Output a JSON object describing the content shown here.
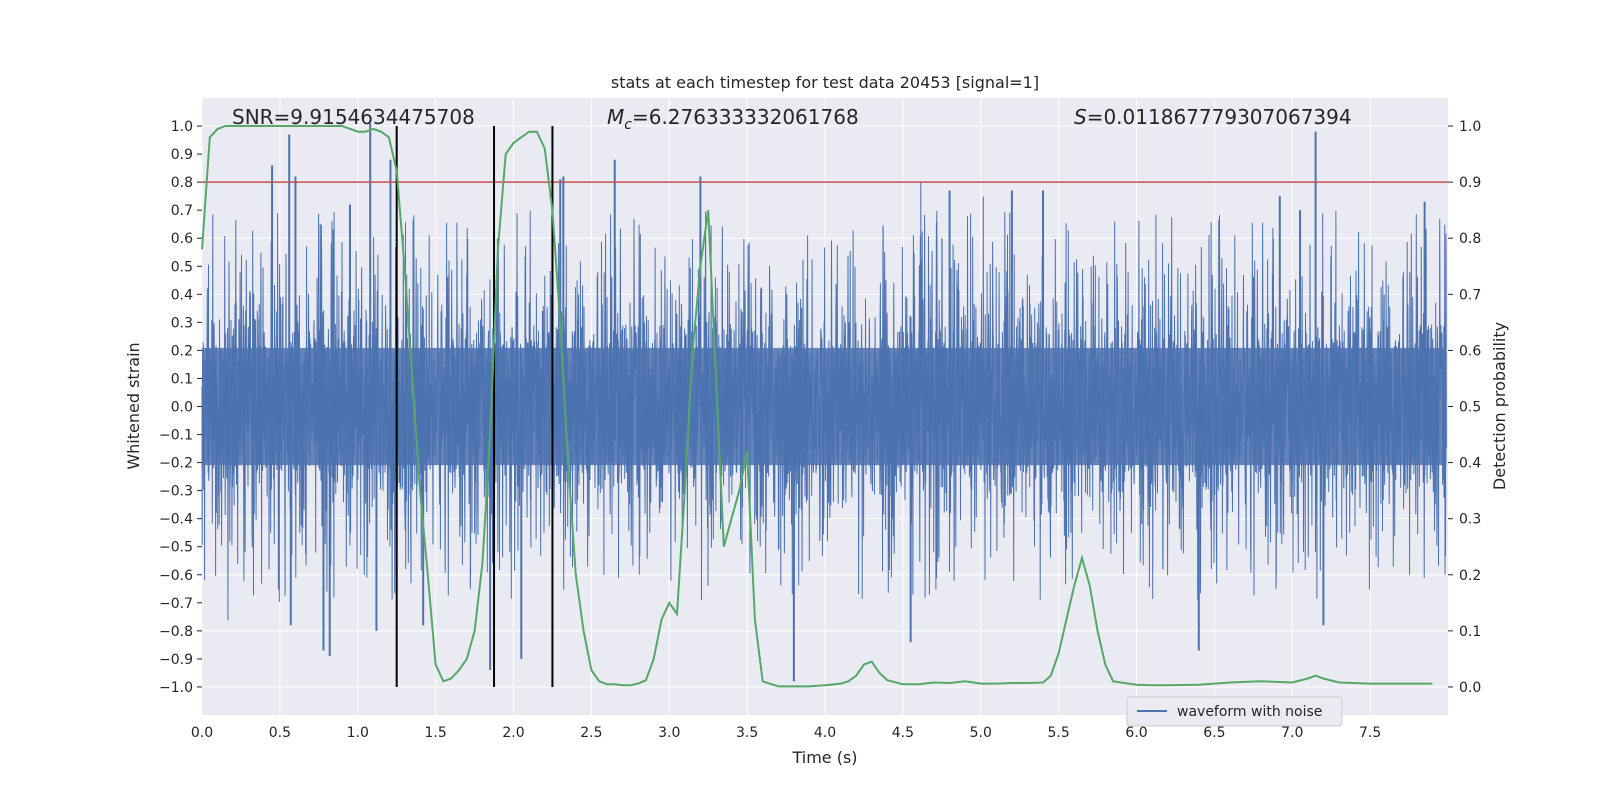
{
  "chart_data": {
    "type": "line",
    "title": "stats at each timestep for test data 20453 [signal=1]",
    "xlabel": "Time (s)",
    "ylabel_left": "Whitened strain",
    "ylabel_right": "Detection probability",
    "xlim": [
      0.0,
      8.0
    ],
    "ylim_left": [
      -1.1,
      1.1
    ],
    "ylim_right": [
      -0.05,
      1.05
    ],
    "x_ticks": [
      0.0,
      0.5,
      1.0,
      1.5,
      2.0,
      2.5,
      3.0,
      3.5,
      4.0,
      4.5,
      5.0,
      5.5,
      6.0,
      6.5,
      7.0,
      7.5
    ],
    "x_tick_labels": [
      "0.0",
      "0.5",
      "1.0",
      "1.5",
      "2.0",
      "2.5",
      "3.0",
      "3.5",
      "4.0",
      "4.5",
      "5.0",
      "5.5",
      "6.0",
      "6.5",
      "7.0",
      "7.5"
    ],
    "y_left_ticks": [
      1.0,
      0.9,
      0.8,
      0.7,
      0.6,
      0.5,
      0.4,
      0.3,
      0.2,
      0.1,
      0.0,
      -0.1,
      -0.2,
      -0.3,
      -0.4,
      -0.5,
      -0.6,
      -0.7,
      -0.8,
      -0.9,
      -1.0
    ],
    "y_left_tick_labels": [
      "1.0",
      "0.9",
      "0.8",
      "0.7",
      "0.6",
      "0.5",
      "0.4",
      "0.3",
      "0.2",
      "0.1",
      "0.0",
      "−0.1",
      "−0.2",
      "−0.3",
      "−0.4",
      "−0.5",
      "−0.6",
      "−0.7",
      "−0.8",
      "−0.9",
      "−1.0"
    ],
    "y_right_ticks": [
      1.0,
      0.9,
      0.8,
      0.7,
      0.6,
      0.5,
      0.4,
      0.3,
      0.2,
      0.1,
      0.0
    ],
    "y_right_tick_labels": [
      "1.0",
      "0.9",
      "0.8",
      "0.7",
      "0.6",
      "0.5",
      "0.4",
      "0.3",
      "0.2",
      "0.1",
      "0.0"
    ],
    "grid": true,
    "annotations": {
      "snr": "SNR=9.9154634475708",
      "mc_symbol": "M",
      "mc_subscript": "c",
      "mc_value": "=6.276333332061768",
      "s_symbol": "S",
      "s_value": "=0.011867779307067394"
    },
    "waveform": {
      "name": "waveform with noise",
      "color": "#4c72b0",
      "duration_s": 8.0,
      "sample_rate_hz": 2048,
      "core_amplitude": 0.38,
      "note": "dense noisy whitened strain trace; spikes listed below",
      "spikes": [
        {
          "t": 0.45,
          "v": 0.86
        },
        {
          "t": 0.56,
          "v": 0.97
        },
        {
          "t": 0.57,
          "v": -0.78
        },
        {
          "t": 0.6,
          "v": 0.82
        },
        {
          "t": 0.78,
          "v": -0.87
        },
        {
          "t": 0.82,
          "v": -0.89
        },
        {
          "t": 0.95,
          "v": 0.72
        },
        {
          "t": 1.08,
          "v": 1.01
        },
        {
          "t": 1.12,
          "v": -0.8
        },
        {
          "t": 1.21,
          "v": 0.88
        },
        {
          "t": 1.42,
          "v": -0.78
        },
        {
          "t": 1.85,
          "v": -0.94
        },
        {
          "t": 1.9,
          "v": 0.6
        },
        {
          "t": 2.05,
          "v": -0.9
        },
        {
          "t": 2.3,
          "v": 0.81
        },
        {
          "t": 2.32,
          "v": 0.82
        },
        {
          "t": 2.65,
          "v": 0.88
        },
        {
          "t": 3.2,
          "v": 0.82
        },
        {
          "t": 3.8,
          "v": -0.98
        },
        {
          "t": 4.55,
          "v": -0.84
        },
        {
          "t": 4.8,
          "v": 0.77
        },
        {
          "t": 5.2,
          "v": 0.77
        },
        {
          "t": 5.4,
          "v": 0.77
        },
        {
          "t": 6.4,
          "v": -0.87
        },
        {
          "t": 6.92,
          "v": 0.75
        },
        {
          "t": 7.05,
          "v": 0.7
        },
        {
          "t": 7.15,
          "v": 0.98
        },
        {
          "t": 7.2,
          "v": -0.78
        },
        {
          "t": 7.85,
          "v": 0.73
        }
      ]
    },
    "probability": {
      "color": "#55a868",
      "axis": "right",
      "t": [
        0.0,
        0.05,
        0.1,
        0.15,
        0.2,
        0.3,
        0.4,
        0.5,
        0.6,
        0.7,
        0.8,
        0.9,
        1.0,
        1.05,
        1.1,
        1.15,
        1.2,
        1.25,
        1.3,
        1.35,
        1.4,
        1.45,
        1.5,
        1.55,
        1.6,
        1.65,
        1.7,
        1.75,
        1.8,
        1.85,
        1.9,
        1.95,
        2.0,
        2.05,
        2.1,
        2.15,
        2.2,
        2.25,
        2.3,
        2.35,
        2.4,
        2.45,
        2.5,
        2.55,
        2.6,
        2.65,
        2.7,
        2.75,
        2.8,
        2.85,
        2.9,
        2.95,
        3.0,
        3.05,
        3.1,
        3.15,
        3.2,
        3.25,
        3.3,
        3.35,
        3.4,
        3.45,
        3.5,
        3.55,
        3.6,
        3.7,
        3.8,
        3.9,
        4.0,
        4.1,
        4.15,
        4.2,
        4.25,
        4.3,
        4.35,
        4.4,
        4.5,
        4.6,
        4.7,
        4.8,
        4.9,
        5.0,
        5.1,
        5.2,
        5.3,
        5.4,
        5.45,
        5.5,
        5.55,
        5.6,
        5.65,
        5.7,
        5.75,
        5.8,
        5.85,
        5.9,
        6.0,
        6.1,
        6.2,
        6.4,
        6.6,
        6.8,
        7.0,
        7.1,
        7.15,
        7.2,
        7.3,
        7.5,
        7.7,
        7.9
      ],
      "p": [
        0.78,
        0.98,
        0.995,
        1.0,
        1.0,
        1.0,
        1.0,
        1.0,
        1.0,
        1.0,
        1.0,
        1.0,
        0.99,
        0.99,
        0.995,
        0.99,
        0.98,
        0.92,
        0.75,
        0.55,
        0.35,
        0.2,
        0.04,
        0.01,
        0.015,
        0.03,
        0.05,
        0.1,
        0.22,
        0.45,
        0.78,
        0.95,
        0.97,
        0.98,
        0.99,
        0.99,
        0.96,
        0.85,
        0.65,
        0.4,
        0.2,
        0.1,
        0.03,
        0.01,
        0.005,
        0.005,
        0.003,
        0.003,
        0.006,
        0.012,
        0.05,
        0.12,
        0.15,
        0.13,
        0.35,
        0.6,
        0.75,
        0.85,
        0.55,
        0.25,
        0.3,
        0.35,
        0.42,
        0.12,
        0.01,
        0.001,
        0.001,
        0.001,
        0.003,
        0.006,
        0.01,
        0.02,
        0.04,
        0.045,
        0.025,
        0.012,
        0.005,
        0.005,
        0.008,
        0.007,
        0.01,
        0.006,
        0.006,
        0.007,
        0.007,
        0.008,
        0.02,
        0.06,
        0.12,
        0.18,
        0.23,
        0.18,
        0.1,
        0.04,
        0.01,
        0.008,
        0.004,
        0.003,
        0.003,
        0.004,
        0.008,
        0.01,
        0.008,
        0.015,
        0.02,
        0.015,
        0.008,
        0.006,
        0.006,
        0.006
      ]
    },
    "threshold": {
      "value_right": 0.9,
      "color": "#c44e52"
    },
    "vertical_lines": [
      1.25,
      1.875,
      2.25
    ],
    "legend": {
      "location": "lower-right",
      "entries": [
        "waveform with noise"
      ]
    }
  },
  "colors": {
    "axes_bg": "#eaeaf2",
    "grid": "#ffffff",
    "text": "#262626",
    "vline": "#000000"
  }
}
